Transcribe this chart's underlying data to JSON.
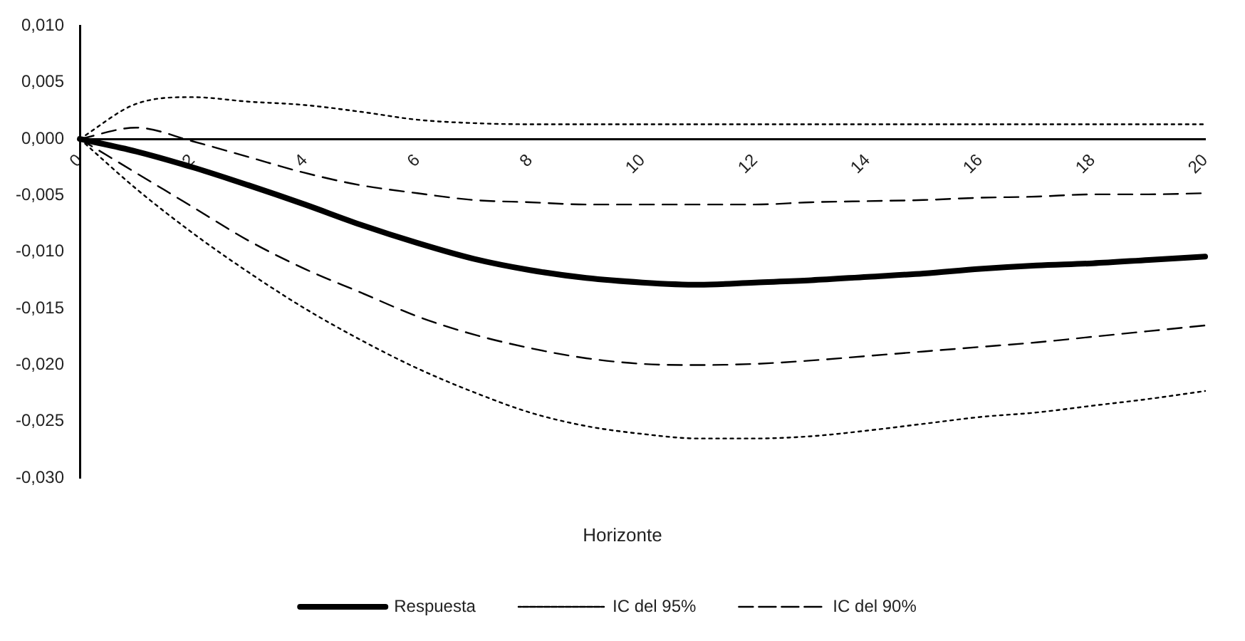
{
  "chart_data": {
    "type": "line",
    "xlabel": "Horizonte",
    "categories": [
      "0",
      null,
      "2",
      null,
      "4",
      null,
      "6",
      null,
      "8",
      null,
      "10",
      null,
      "12",
      null,
      "14",
      null,
      "16",
      null,
      "18",
      null,
      "20"
    ],
    "series": [
      {
        "name": "Respuesta",
        "color": "#000000",
        "line_style": "solid",
        "values": [
          0,
          -0.0011,
          -0.0025,
          -0.0041,
          -0.0058,
          -0.0076,
          -0.0092,
          -0.0106,
          -0.0116,
          -0.0123,
          -0.0127,
          -0.0129,
          -0.0127,
          -0.0125,
          -0.0122,
          -0.0119,
          -0.0115,
          -0.0112,
          -0.011,
          -0.0107,
          -0.0104
        ]
      },
      {
        "name": "IC del 95%",
        "color": "#000000",
        "line_style": "dotted",
        "values": [
          0,
          0.0031,
          0.0037,
          0.0033,
          0.003,
          0.0024,
          0.0017,
          0.0014,
          0.0013,
          0.0013,
          0.0013,
          0.0013,
          0.0013,
          0.0013,
          0.0013,
          0.0013,
          0.0013,
          0.0013,
          0.0013,
          0.0013,
          0.0013
        ]
      },
      {
        "color": "#000000",
        "line_style": "dotted",
        "values": [
          0,
          -0.0044,
          -0.0083,
          -0.0118,
          -0.015,
          -0.0178,
          -0.0203,
          -0.0224,
          -0.0242,
          -0.0254,
          -0.0261,
          -0.0265,
          -0.0265,
          -0.0263,
          -0.0258,
          -0.0252,
          -0.0246,
          -0.0242,
          -0.0236,
          -0.023,
          -0.0223
        ]
      },
      {
        "name": "IC del 90%",
        "color": "#000000",
        "line_style": "dashed",
        "values": [
          0,
          0.001,
          -0.0002,
          -0.0016,
          -0.003,
          -0.0041,
          -0.0048,
          -0.0054,
          -0.0056,
          -0.0058,
          -0.0058,
          -0.0058,
          -0.0058,
          -0.0056,
          -0.0055,
          -0.0054,
          -0.0052,
          -0.0051,
          -0.0049,
          -0.0049,
          -0.0048
        ]
      },
      {
        "color": "#000000",
        "line_style": "dashed",
        "values": [
          0,
          -0.003,
          -0.006,
          -0.009,
          -0.0115,
          -0.0136,
          -0.0157,
          -0.0173,
          -0.0185,
          -0.0194,
          -0.0199,
          -0.02,
          -0.0199,
          -0.0196,
          -0.0192,
          -0.0188,
          -0.0184,
          -0.018,
          -0.0175,
          -0.017,
          -0.0165
        ]
      }
    ],
    "ylim": [
      -0.03,
      0.01
    ],
    "yticks": [
      {
        "value": 0.01,
        "label": "0,010"
      },
      {
        "value": 0.005,
        "label": "0,005"
      },
      {
        "value": 0,
        "label": "0,000"
      },
      {
        "value": -0.005,
        "label": "-0,005"
      },
      {
        "value": -0.01,
        "label": "-0,010"
      },
      {
        "value": -0.015,
        "label": "-0,015"
      },
      {
        "value": -0.02,
        "label": "-0,020"
      },
      {
        "value": -0.025,
        "label": "-0,025"
      },
      {
        "value": -0.03,
        "label": "-0,030"
      }
    ],
    "grid": false,
    "legend": "bottom",
    "marker": "none"
  }
}
